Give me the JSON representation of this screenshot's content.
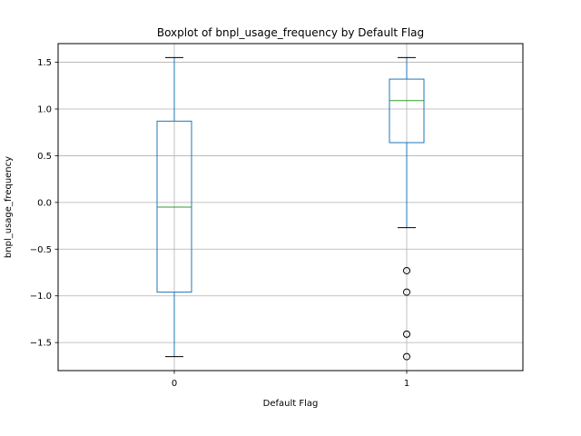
{
  "colors": {
    "box": "#1f77b4",
    "median": "#2ca02c",
    "whisker": "#1f77b4",
    "cap": "#000000",
    "flier": "#000000",
    "grid": "#b0b0b0",
    "axes": "#000000"
  },
  "chart_data": {
    "type": "box",
    "title": "Boxplot of bnpl_usage_frequency by Default Flag",
    "xlabel": "Default Flag",
    "ylabel": "bnpl_usage_frequency",
    "categories": [
      "0",
      "1"
    ],
    "ylim": [
      -1.8,
      1.7
    ],
    "yticks": [
      -1.5,
      -1.0,
      -0.5,
      0.0,
      0.5,
      1.0,
      1.5
    ],
    "ytick_labels": [
      "−1.5",
      "−1.0",
      "−0.5",
      "0.0",
      "0.5",
      "1.0",
      "1.5"
    ],
    "grid": true,
    "boxes": [
      {
        "category": "0",
        "whisker_low": -1.65,
        "q1": -0.96,
        "median": -0.05,
        "q3": 0.87,
        "whisker_high": 1.55,
        "fliers": []
      },
      {
        "category": "1",
        "whisker_low": -0.27,
        "q1": 0.64,
        "median": 1.09,
        "q3": 1.32,
        "whisker_high": 1.55,
        "fliers": [
          -0.73,
          -0.96,
          -1.41,
          -1.65
        ]
      }
    ]
  }
}
